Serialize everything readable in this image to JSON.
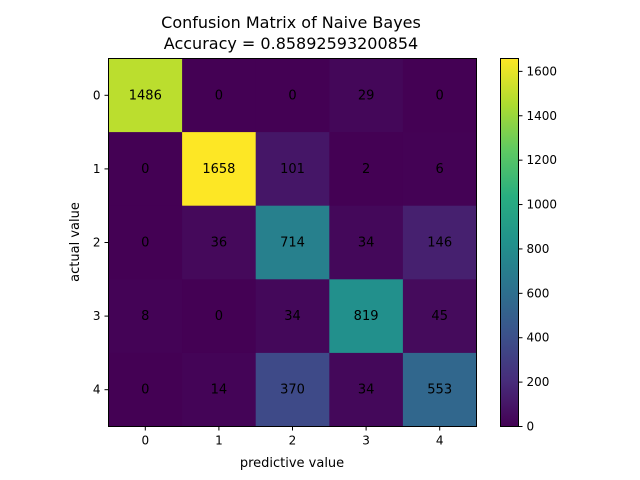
{
  "chart_data": {
    "type": "heatmap",
    "title": "Confusion Matrix of Naive Bayes",
    "subtitle": "Accuracy = 0.85892593200854",
    "xlabel": "predictive value",
    "ylabel": "actual value",
    "x_ticks": [
      "0",
      "1",
      "2",
      "3",
      "4"
    ],
    "y_ticks": [
      "0",
      "1",
      "2",
      "3",
      "4"
    ],
    "matrix": [
      [
        1486,
        0,
        0,
        29,
        0
      ],
      [
        0,
        1658,
        101,
        2,
        6
      ],
      [
        0,
        36,
        714,
        34,
        146
      ],
      [
        8,
        0,
        34,
        819,
        45
      ],
      [
        0,
        14,
        370,
        34,
        553
      ]
    ],
    "colormap": "viridis",
    "value_range": [
      0,
      1658
    ],
    "colorbar_ticks": [
      "0",
      "200",
      "400",
      "600",
      "800",
      "1000",
      "1200",
      "1400",
      "1600"
    ]
  }
}
